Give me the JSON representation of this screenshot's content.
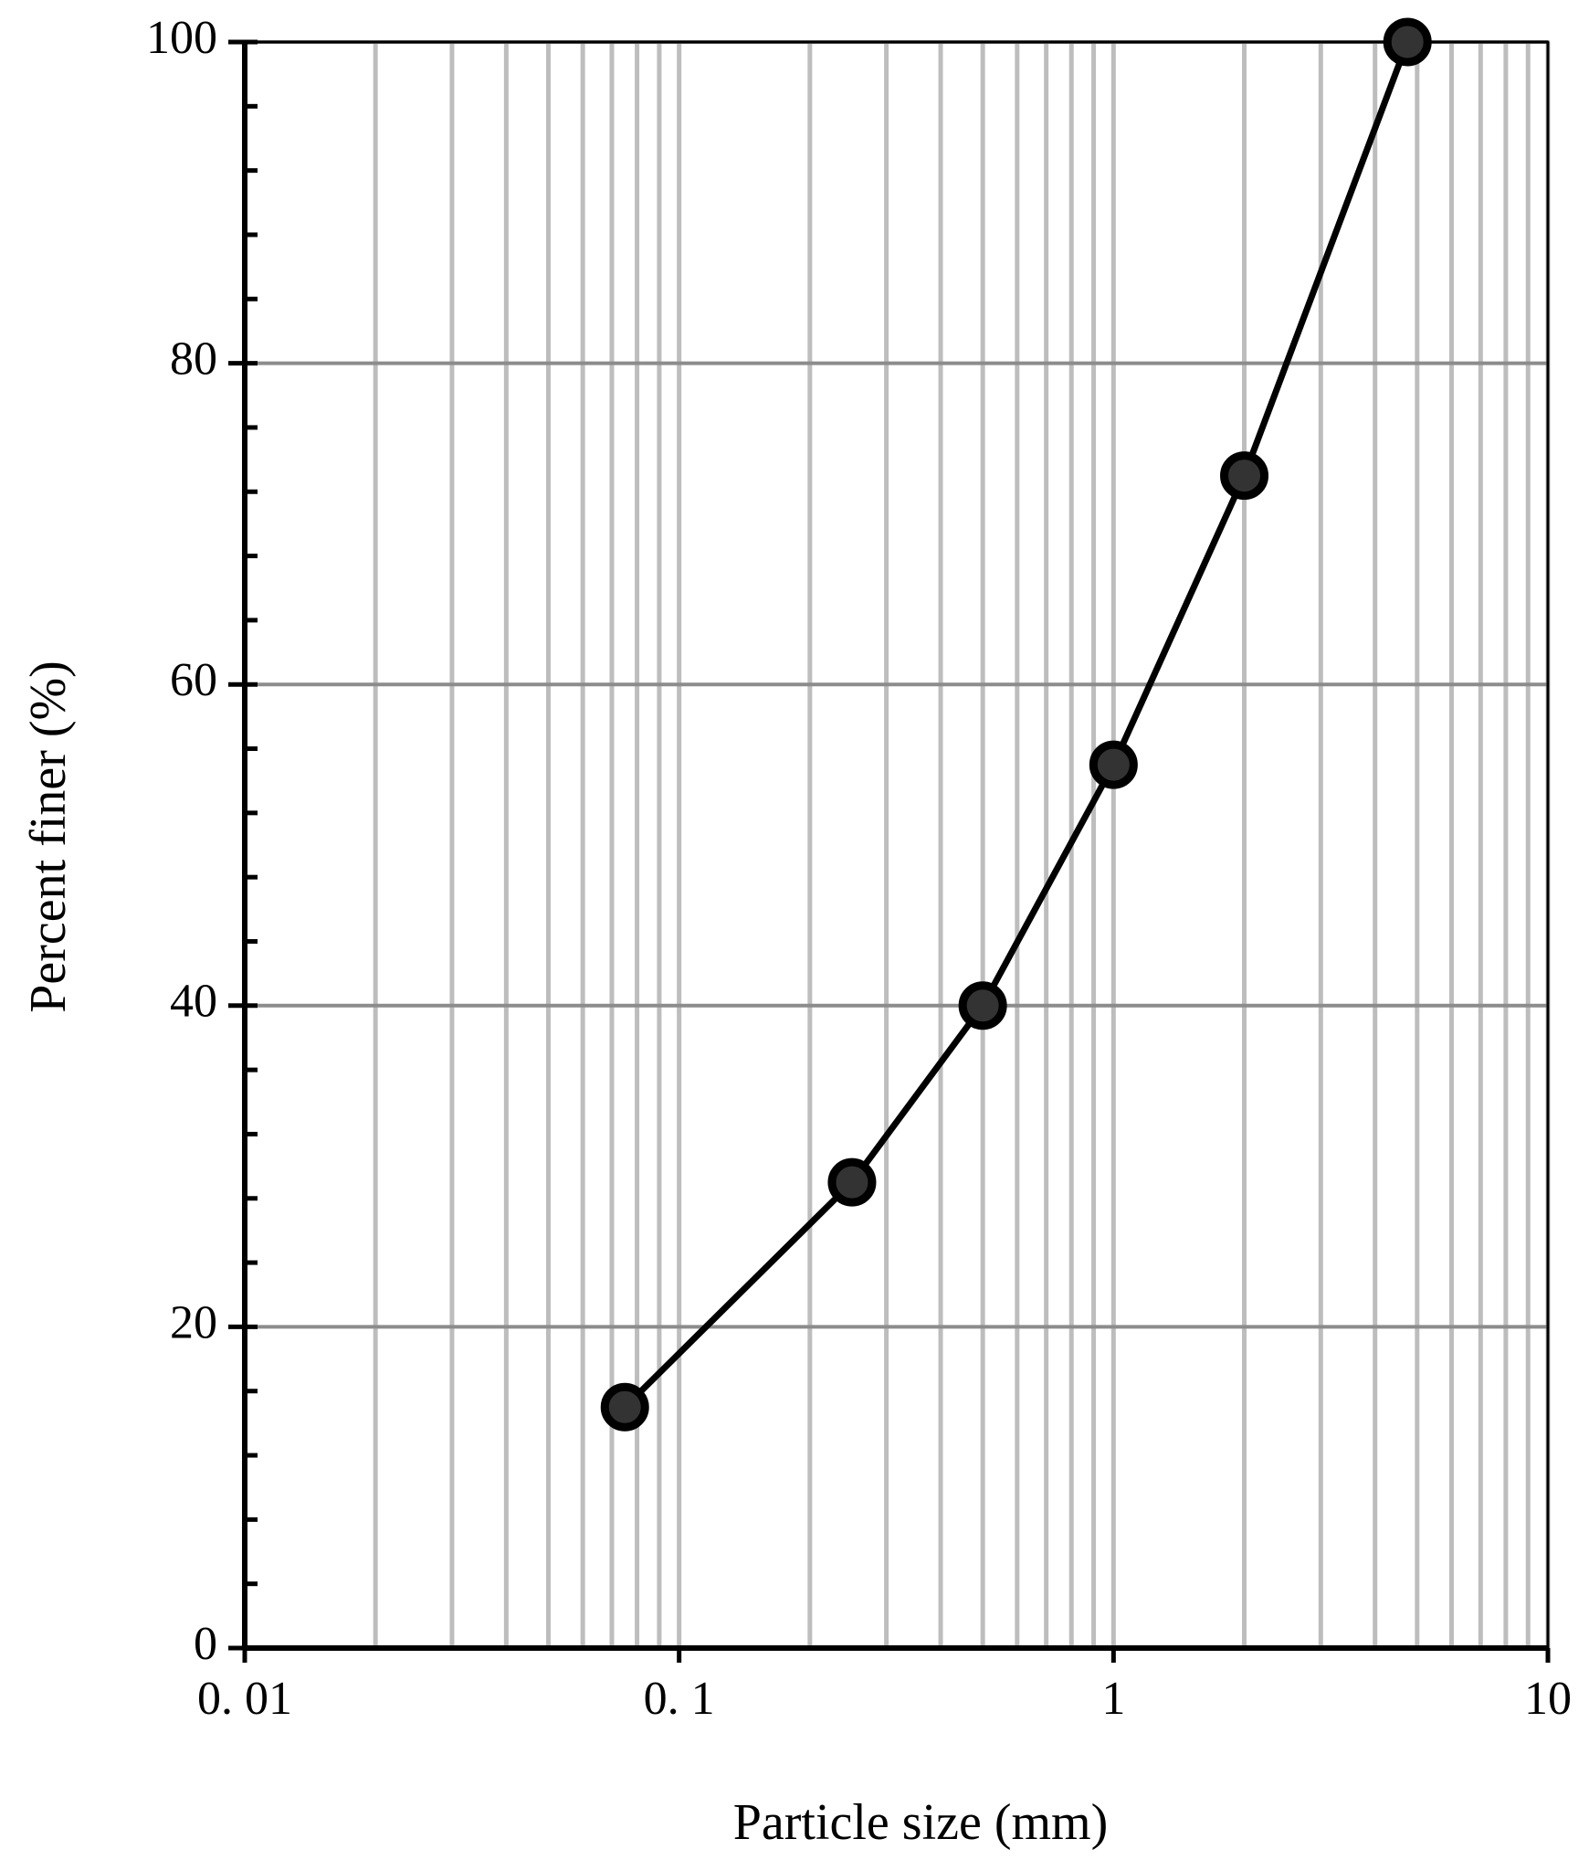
{
  "chart_data": {
    "type": "line",
    "x_label": "Particle size (mm)",
    "y_label": "Percent finer (%)",
    "x": [
      0.075,
      0.25,
      0.5,
      1,
      2,
      4.75
    ],
    "series": [
      {
        "color": "#000000",
        "marker_color": "#333333",
        "values": [
          15,
          29,
          40,
          55,
          73,
          100
        ]
      }
    ],
    "xscale": "log",
    "xlim": [
      0.01,
      10
    ],
    "xticks": [
      {
        "value": 0.01,
        "label": "0. 01"
      },
      {
        "value": 0.1,
        "label": "0. 1"
      },
      1,
      10
    ],
    "ylim": [
      0,
      100
    ],
    "yticks": [
      0,
      20,
      40,
      60,
      80,
      100
    ],
    "grid": true
  }
}
